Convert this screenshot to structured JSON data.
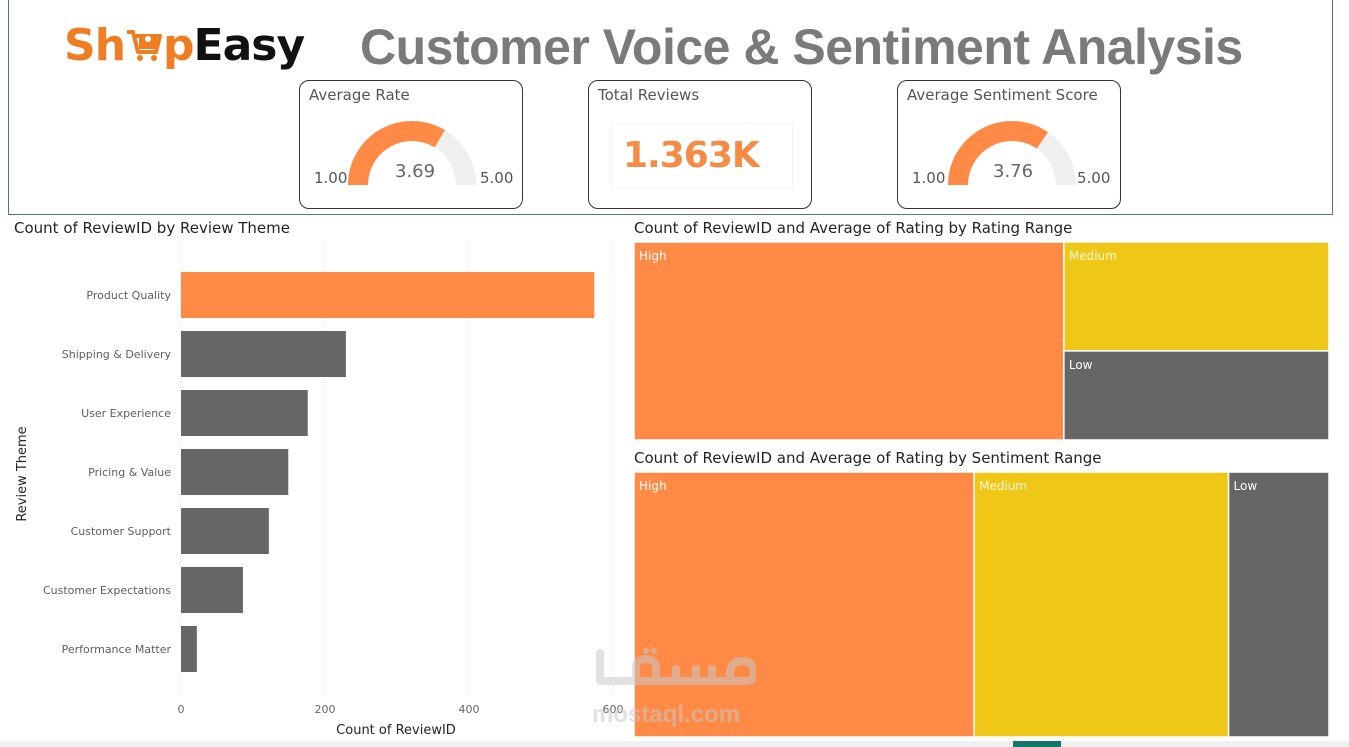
{
  "header": {
    "logo": {
      "part1": "Sh",
      "part2": "p",
      "part3": "Easy"
    },
    "title": "Customer Voice & Sentiment Analysis"
  },
  "kpis": {
    "average_rate": {
      "title": "Average Rate",
      "value": "3.69",
      "min": "1.00",
      "max": "5.00",
      "value_num": 3.69,
      "min_num": 1,
      "max_num": 5
    },
    "total_reviews": {
      "title": "Total Reviews",
      "value": "1.363K"
    },
    "average_sentiment": {
      "title": "Average Sentiment Score",
      "value": "3.76",
      "min": "1.00",
      "max": "5.00",
      "value_num": 3.76,
      "min_num": 1,
      "max_num": 5
    }
  },
  "colors": {
    "accent": "#ff8a45",
    "yellow": "#efc716",
    "gray": "#666666",
    "gauge_track": "#efefef",
    "title_gray": "#7a7a7a"
  },
  "chart_data": [
    {
      "type": "bar",
      "orientation": "horizontal",
      "title": "Count of ReviewID by Review Theme",
      "xlabel": "Count of ReviewID",
      "ylabel": "Review Theme",
      "categories": [
        "Product Quality",
        "Shipping & Delivery",
        "User Experience",
        "Pricing & Value",
        "Customer Support",
        "Customer Expectations",
        "Performance Matter"
      ],
      "values": [
        574,
        229,
        176,
        149,
        122,
        86,
        22
      ],
      "highlight": "Product Quality",
      "xlim": [
        0,
        600
      ],
      "xticks": [
        "0",
        "200",
        "400",
        "600"
      ],
      "xtick_values": [
        0,
        200,
        400,
        600
      ],
      "grid": true
    },
    {
      "type": "treemap",
      "title": "Count of ReviewID and Average of Rating by Rating Range",
      "items": [
        {
          "label": "High",
          "value": 843,
          "color": "#ff8a45"
        },
        {
          "label": "Medium",
          "value": 286,
          "color": "#efc716"
        },
        {
          "label": "Low",
          "value": 234,
          "color": "#666666"
        }
      ]
    },
    {
      "type": "treemap",
      "title": "Count of ReviewID and Average of Rating by Sentiment Range",
      "items": [
        {
          "label": "High",
          "value": 667,
          "color": "#ff8a45"
        },
        {
          "label": "Medium",
          "value": 499,
          "color": "#efc716"
        },
        {
          "label": "Low",
          "value": 197,
          "color": "#666666"
        }
      ]
    }
  ],
  "watermark": {
    "text": "mostaql.com"
  }
}
